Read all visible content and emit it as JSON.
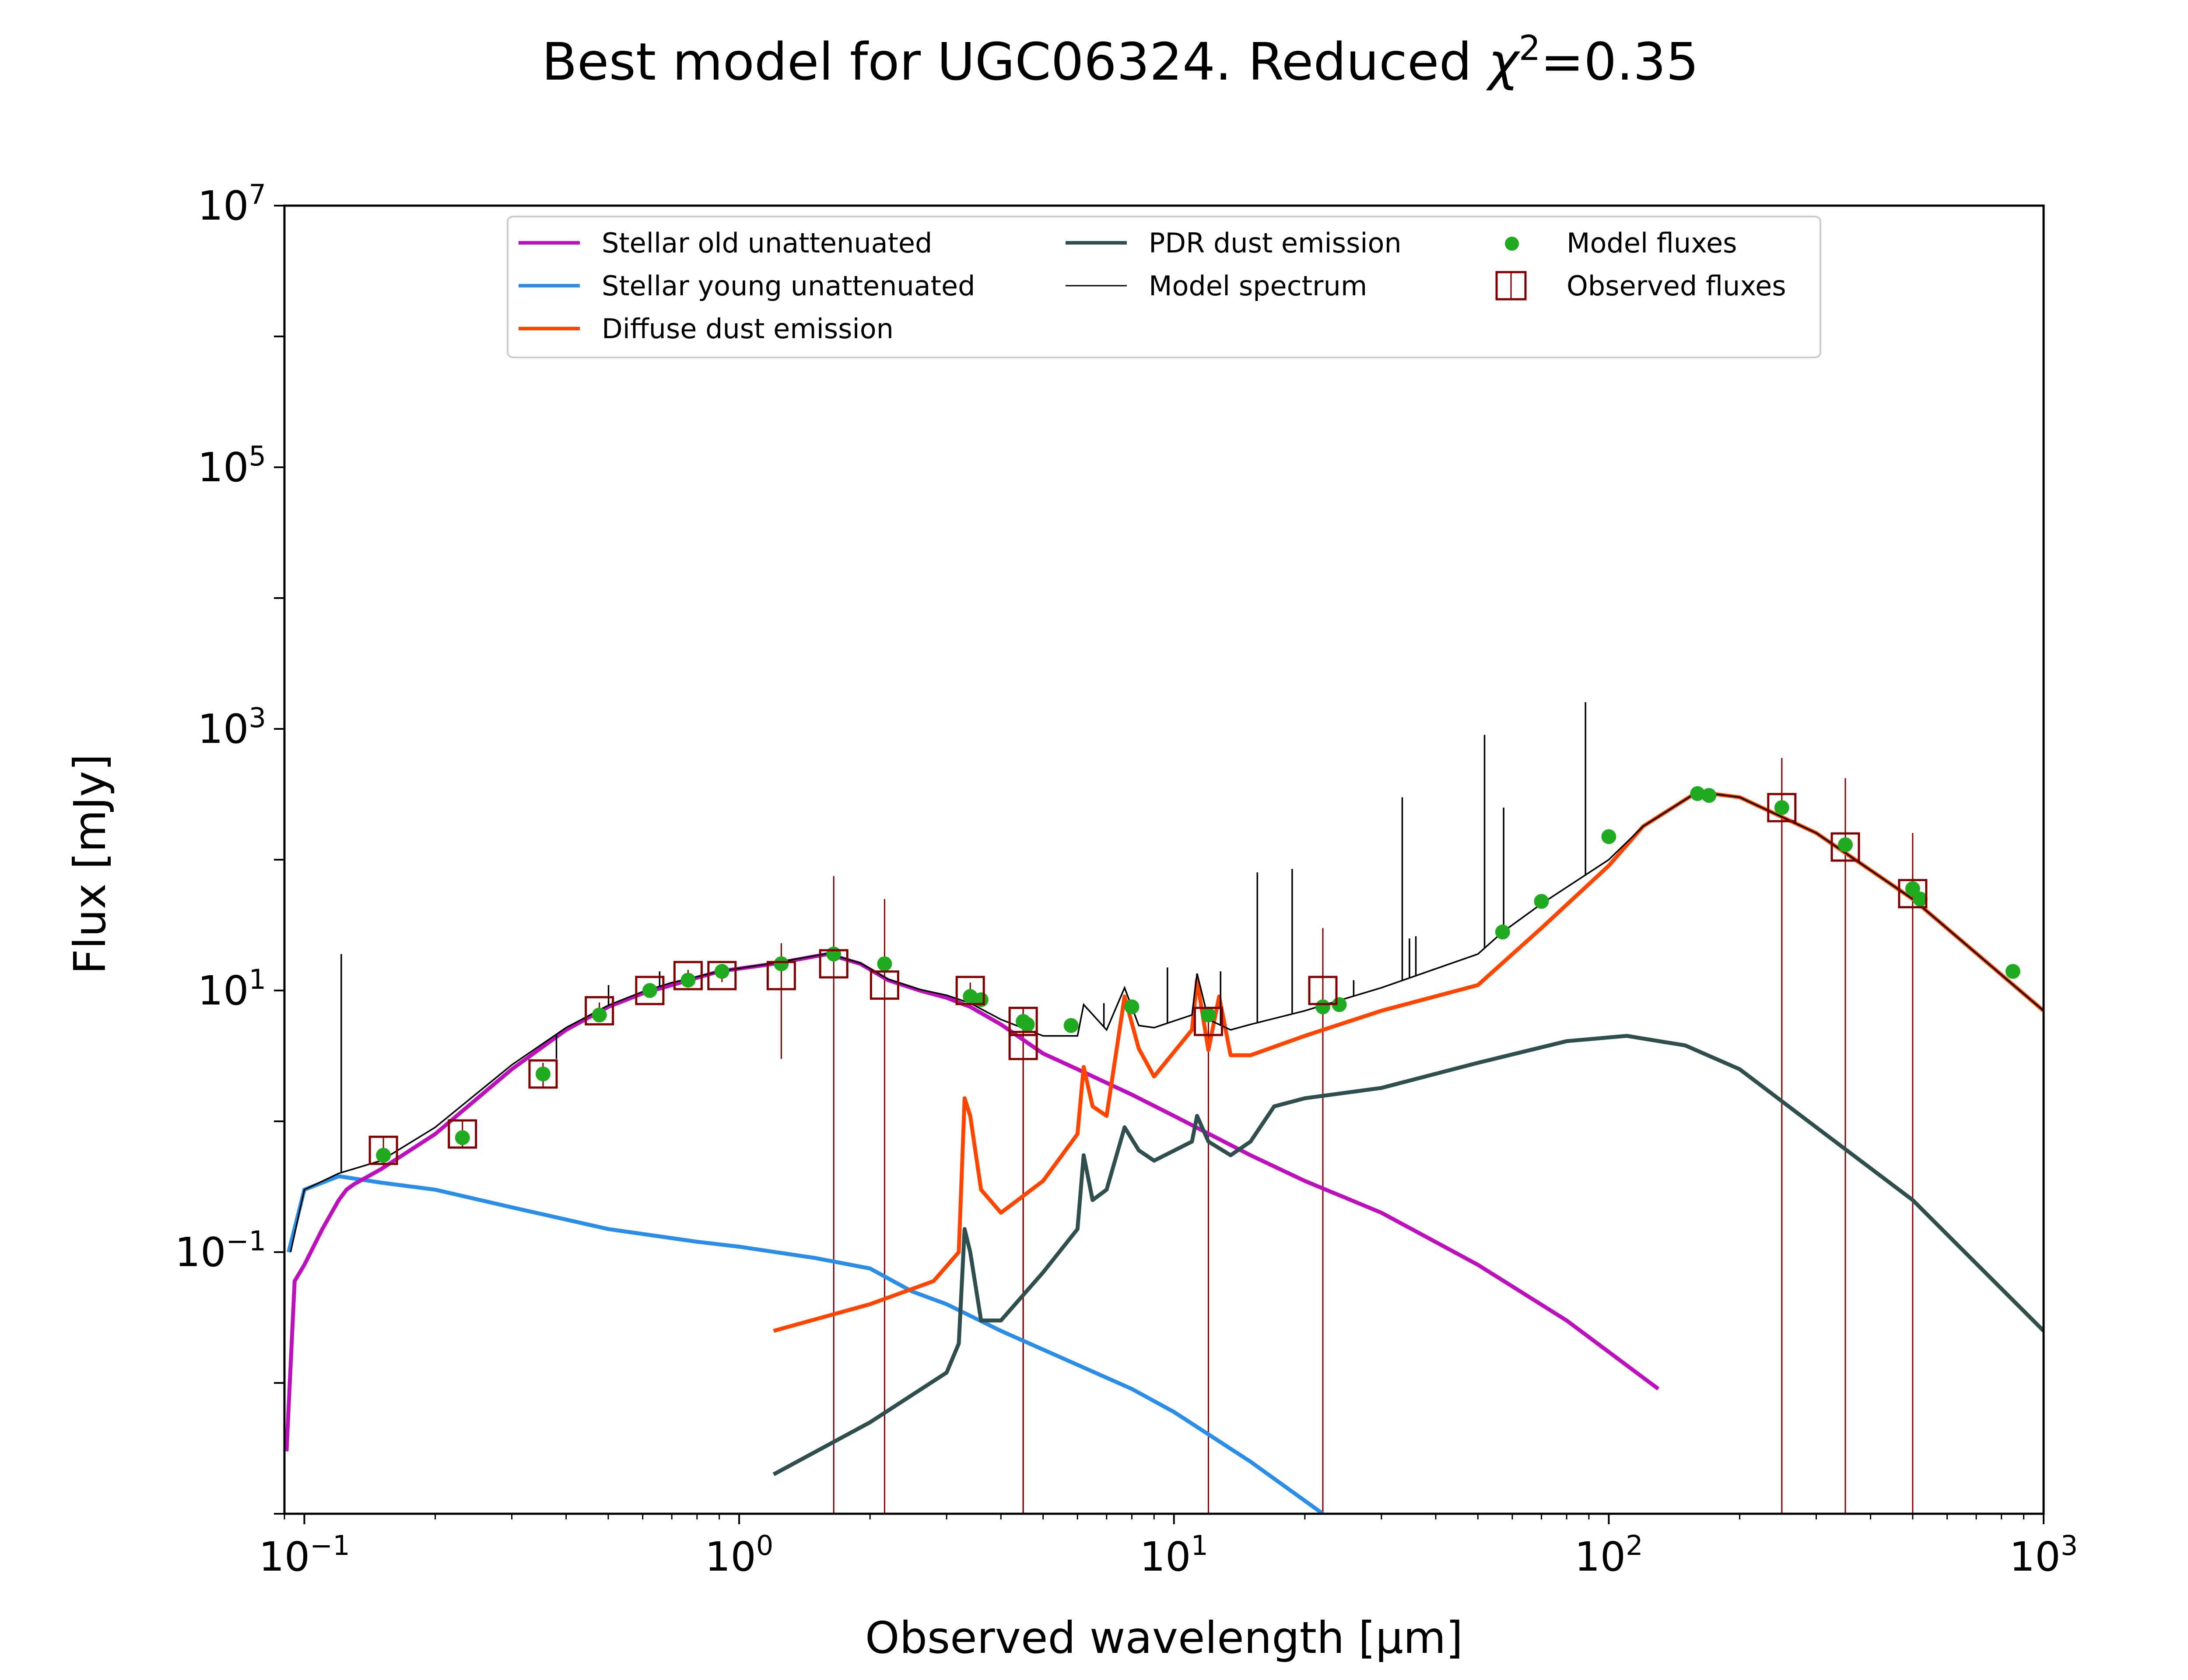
{
  "chart_data": {
    "type": "line",
    "title": "Best model for UGC06324. Reduced χ²=0.35",
    "title_parts": {
      "main": "Best model for UGC06324. Reduced ",
      "chi": "χ",
      "sup": "2",
      "tail": "=0.35"
    },
    "xlabel": "Observed wavelength [μm]",
    "ylabel": "Flux [mJy]",
    "xscale": "log",
    "yscale": "log",
    "xlim": [
      0.09,
      1000
    ],
    "ylim": [
      0.001,
      10000000
    ],
    "x_ticks": [
      {
        "value": 0.1,
        "base": "10",
        "exp": "−1"
      },
      {
        "value": 1,
        "base": "10",
        "exp": "0"
      },
      {
        "value": 10,
        "base": "10",
        "exp": "1"
      },
      {
        "value": 100,
        "base": "10",
        "exp": "2"
      },
      {
        "value": 1000,
        "base": "10",
        "exp": "3"
      }
    ],
    "y_ticks": [
      {
        "value": 0.1,
        "base": "10",
        "exp": "−1"
      },
      {
        "value": 10,
        "base": "10",
        "exp": "1"
      },
      {
        "value": 1000,
        "base": "10",
        "exp": "3"
      },
      {
        "value": 100000,
        "base": "10",
        "exp": "5"
      },
      {
        "value": 10000000,
        "base": "10",
        "exp": "7"
      }
    ],
    "legend_position": "top-center",
    "legend": [
      {
        "label": "Stellar old unattenuated",
        "kind": "line",
        "color": "#bb10bb"
      },
      {
        "label": "Stellar young unattenuated",
        "kind": "line",
        "color": "#2a8ee8"
      },
      {
        "label": "Diffuse dust emission",
        "kind": "line",
        "color": "#ff4500"
      },
      {
        "label": "PDR dust emission",
        "kind": "line",
        "color": "#2f4f4f"
      },
      {
        "label": "Model spectrum",
        "kind": "thin-line",
        "color": "#000000"
      },
      {
        "label": "Model fluxes",
        "kind": "dot",
        "color": "#1faa1f"
      },
      {
        "label": "Observed fluxes",
        "kind": "square",
        "color": "#800000"
      }
    ],
    "series": [
      {
        "name": "Stellar old unattenuated",
        "color": "#bb10bb",
        "x": [
          0.091,
          0.095,
          0.1,
          0.11,
          0.12,
          0.125,
          0.13,
          0.15,
          0.2,
          0.3,
          0.4,
          0.5,
          0.6,
          0.7,
          0.9,
          1.2,
          1.6,
          1.9,
          2.2,
          2.6,
          3,
          3.4,
          4,
          5,
          6,
          8,
          10,
          15,
          20,
          30,
          50,
          80,
          130
        ],
        "y": [
          0.003,
          0.06,
          0.08,
          0.15,
          0.25,
          0.3,
          0.33,
          0.43,
          0.8,
          2.5,
          5,
          7.5,
          9.5,
          11,
          14,
          16,
          19,
          16,
          12,
          10,
          8.8,
          7.5,
          5.5,
          3.3,
          2.5,
          1.6,
          1.1,
          0.55,
          0.35,
          0.2,
          0.08,
          0.03,
          0.009
        ]
      },
      {
        "name": "Stellar young unattenuated",
        "color": "#2a8ee8",
        "x": [
          0.092,
          0.1,
          0.12,
          0.15,
          0.2,
          0.3,
          0.5,
          0.8,
          1,
          1.5,
          2,
          2.5,
          3,
          4,
          5,
          8,
          10,
          15,
          22
        ],
        "y": [
          0.1,
          0.3,
          0.38,
          0.34,
          0.3,
          0.22,
          0.15,
          0.12,
          0.11,
          0.09,
          0.075,
          0.05,
          0.04,
          0.025,
          0.018,
          0.009,
          0.006,
          0.0025,
          0.001
        ]
      },
      {
        "name": "Diffuse dust emission",
        "color": "#ff4500",
        "x": [
          1.2,
          2,
          2.8,
          3.2,
          3.3,
          3.4,
          3.6,
          4,
          5,
          6,
          6.2,
          6.5,
          7,
          7.7,
          8.3,
          9,
          11,
          11.3,
          12,
          12.7,
          13.5,
          15,
          20,
          30,
          50,
          70,
          100,
          120,
          160,
          200,
          300,
          500,
          1000
        ],
        "y": [
          0.025,
          0.04,
          0.06,
          0.1,
          1.5,
          1.1,
          0.3,
          0.2,
          0.35,
          0.8,
          2.6,
          1.3,
          1.1,
          9,
          3.6,
          2.2,
          5,
          12,
          3.5,
          9,
          3.2,
          3.2,
          4.5,
          7,
          11,
          30,
          90,
          180,
          330,
          300,
          160,
          50,
          7
        ]
      },
      {
        "name": "PDR dust emission",
        "color": "#2f4f4f",
        "x": [
          1.2,
          2,
          3,
          3.2,
          3.3,
          3.4,
          3.6,
          4,
          5,
          6,
          6.2,
          6.5,
          7,
          7.7,
          8.3,
          9,
          11,
          11.3,
          12,
          13.5,
          15,
          17,
          20,
          30,
          50,
          80,
          110,
          150,
          200,
          300,
          500,
          1000
        ],
        "y": [
          0.002,
          0.005,
          0.012,
          0.02,
          0.15,
          0.1,
          0.03,
          0.03,
          0.07,
          0.15,
          0.55,
          0.25,
          0.3,
          0.9,
          0.6,
          0.5,
          0.7,
          1.1,
          0.7,
          0.55,
          0.7,
          1.3,
          1.5,
          1.8,
          2.8,
          4.1,
          4.5,
          3.8,
          2.5,
          0.9,
          0.25,
          0.025
        ]
      },
      {
        "name": "Model spectrum",
        "color": "#000000",
        "x": [
          0.093,
          0.1,
          0.12,
          0.15,
          0.2,
          0.3,
          0.4,
          0.5,
          0.6,
          0.7,
          0.9,
          1.2,
          1.6,
          1.9,
          2.2,
          2.6,
          3,
          3.4,
          4,
          5,
          6,
          6.2,
          7,
          7.7,
          8.3,
          9,
          11,
          11.3,
          12,
          13.5,
          15,
          20,
          30,
          50,
          57,
          70,
          100,
          120,
          160,
          200,
          300,
          500,
          1000
        ],
        "y": [
          0.1,
          0.3,
          0.4,
          0.5,
          0.9,
          2.7,
          5.2,
          7.7,
          9.8,
          11.5,
          14,
          16.2,
          19.2,
          16.2,
          12.2,
          10.2,
          9.2,
          8,
          6,
          4.5,
          4.5,
          7.8,
          5,
          10.5,
          5.4,
          5.2,
          6.5,
          13.5,
          6,
          5,
          5.5,
          7,
          10.5,
          19,
          28,
          46,
          100,
          180,
          330,
          300,
          160,
          50,
          7
        ]
      }
    ],
    "emission_lines": [
      {
        "x": 0.1216,
        "y": 19
      },
      {
        "x": 0.38,
        "y": 3.0
      },
      {
        "x": 0.5007,
        "y": 11
      },
      {
        "x": 0.6563,
        "y": 14
      },
      {
        "x": 6.9,
        "y": 8
      },
      {
        "x": 9.66,
        "y": 15
      },
      {
        "x": 12.8,
        "y": 14
      },
      {
        "x": 15.55,
        "y": 80
      },
      {
        "x": 18.7,
        "y": 85
      },
      {
        "x": 25.9,
        "y": 12
      },
      {
        "x": 33.5,
        "y": 300
      },
      {
        "x": 34.8,
        "y": 25
      },
      {
        "x": 36,
        "y": 26
      },
      {
        "x": 51.8,
        "y": 900
      },
      {
        "x": 57.3,
        "y": 250
      },
      {
        "x": 88.4,
        "y": 1600
      }
    ],
    "model_fluxes": {
      "x": [
        0.152,
        0.231,
        0.354,
        0.477,
        0.623,
        0.763,
        0.913,
        1.25,
        1.65,
        2.16,
        3.4,
        3.6,
        4.5,
        4.6,
        5.8,
        8,
        12,
        22,
        24,
        57,
        70,
        100,
        160,
        170,
        250,
        350,
        500,
        520,
        850
      ],
      "y": [
        0.55,
        0.75,
        2.3,
        6.5,
        10,
        12,
        14,
        16,
        19,
        16,
        9,
        8.5,
        5.8,
        5.5,
        5.4,
        7.5,
        6.5,
        7.5,
        7.8,
        28,
        48,
        150,
        320,
        310,
        250,
        130,
        60,
        50,
        14
      ]
    },
    "observed_fluxes": {
      "x": [
        0.152,
        0.231,
        0.354,
        0.477,
        0.623,
        0.763,
        0.913,
        1.25,
        1.65,
        2.16,
        3.4,
        4.5,
        4.5,
        12,
        22,
        250,
        350,
        500
      ],
      "y": [
        0.6,
        0.8,
        2.3,
        7,
        10,
        13,
        13,
        13,
        16,
        11,
        10,
        3.8,
        5.8,
        5.8,
        10,
        250,
        125,
        55
      ],
      "err_low": [
        0.45,
        0.62,
        1.8,
        5.9,
        8.9,
        11.6,
        11.6,
        3,
        0.001,
        0.001,
        8.5,
        0.001,
        0.001,
        0.001,
        0.001,
        0.001,
        0.001,
        0.001
      ],
      "err_high": [
        0.75,
        1.0,
        2.8,
        8.1,
        11.1,
        14.4,
        14.4,
        23,
        75,
        50,
        11.5,
        7.5,
        7.5,
        7.5,
        30,
        600,
        420,
        160
      ]
    }
  }
}
